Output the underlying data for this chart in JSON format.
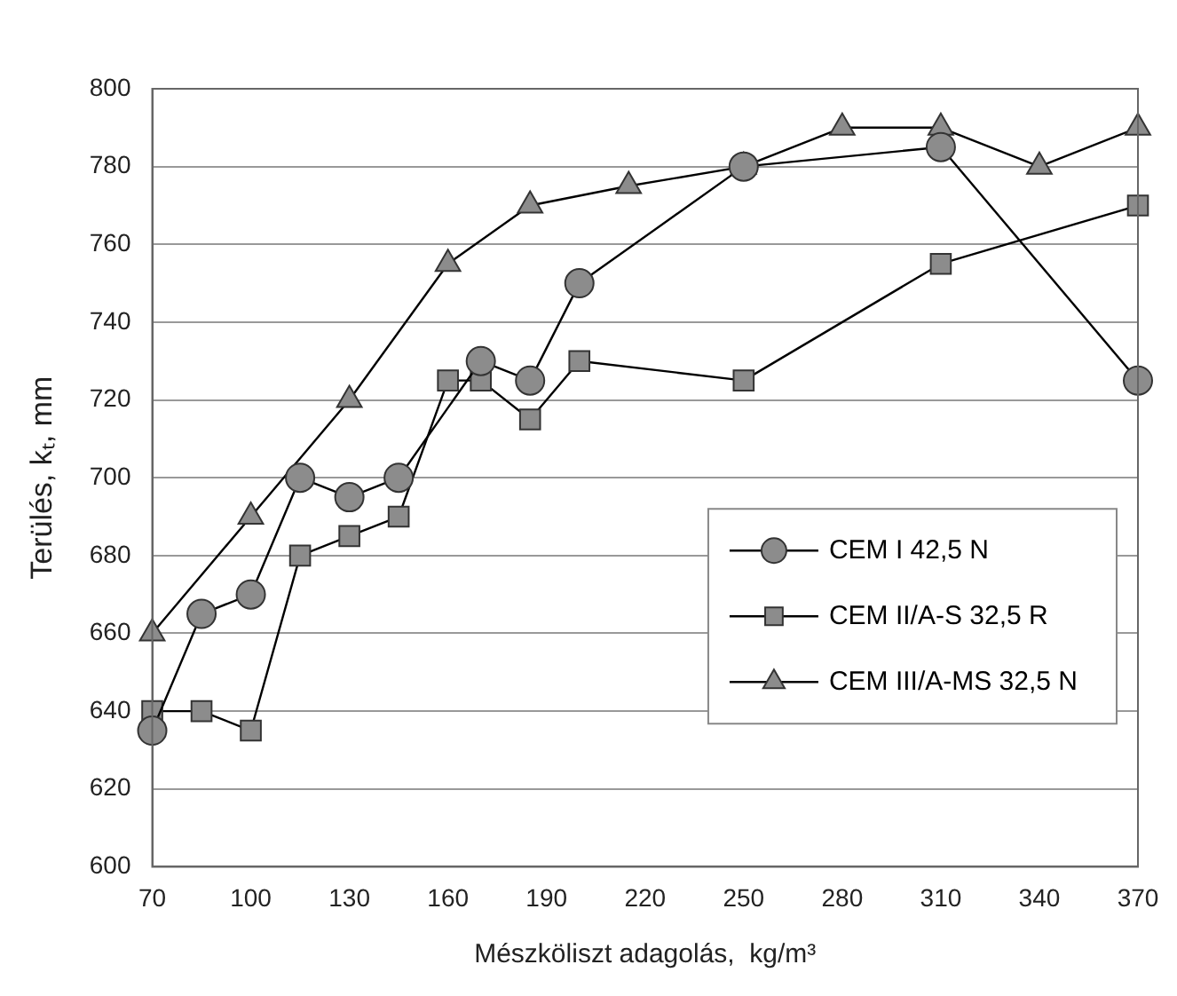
{
  "chart_data": {
    "type": "line",
    "xlabel": "Mészköliszt adagolás,  kg/m³",
    "ylabel": "Terülés, kₜ, mm",
    "xlim": [
      70,
      370
    ],
    "xticks": [
      70,
      100,
      130,
      160,
      190,
      220,
      250,
      280,
      310,
      340,
      370
    ],
    "ylim": [
      600,
      800
    ],
    "yticks": [
      600,
      620,
      640,
      660,
      680,
      700,
      720,
      740,
      760,
      780,
      800
    ],
    "grid": "y",
    "legend": "right",
    "line_style": "solid",
    "series": [
      {
        "name": "CEM I 42,5 N",
        "color": "#8c8c8c",
        "marker": "circle",
        "x": [
          70,
          85,
          100,
          115,
          130,
          145,
          170,
          185,
          200,
          250,
          310,
          370
        ],
        "values": [
          635,
          665,
          670,
          700,
          695,
          700,
          730,
          725,
          750,
          780,
          785,
          725
        ]
      },
      {
        "name": "CEM II/A-S 32,5 R",
        "color": "#8c8c8c",
        "marker": "square",
        "x": [
          70,
          85,
          100,
          115,
          130,
          145,
          160,
          170,
          185,
          200,
          250,
          310,
          370
        ],
        "values": [
          640,
          640,
          635,
          680,
          685,
          690,
          725,
          725,
          715,
          730,
          725,
          755,
          770
        ]
      },
      {
        "name": "CEM III/A-MS 32,5 N",
        "color": "#8c8c8c",
        "marker": "triangle",
        "x": [
          70,
          100,
          130,
          160,
          185,
          215,
          250,
          280,
          310,
          340,
          370
        ],
        "values": [
          660,
          690,
          720,
          755,
          770,
          775,
          780,
          790,
          790,
          780,
          790
        ]
      }
    ]
  }
}
